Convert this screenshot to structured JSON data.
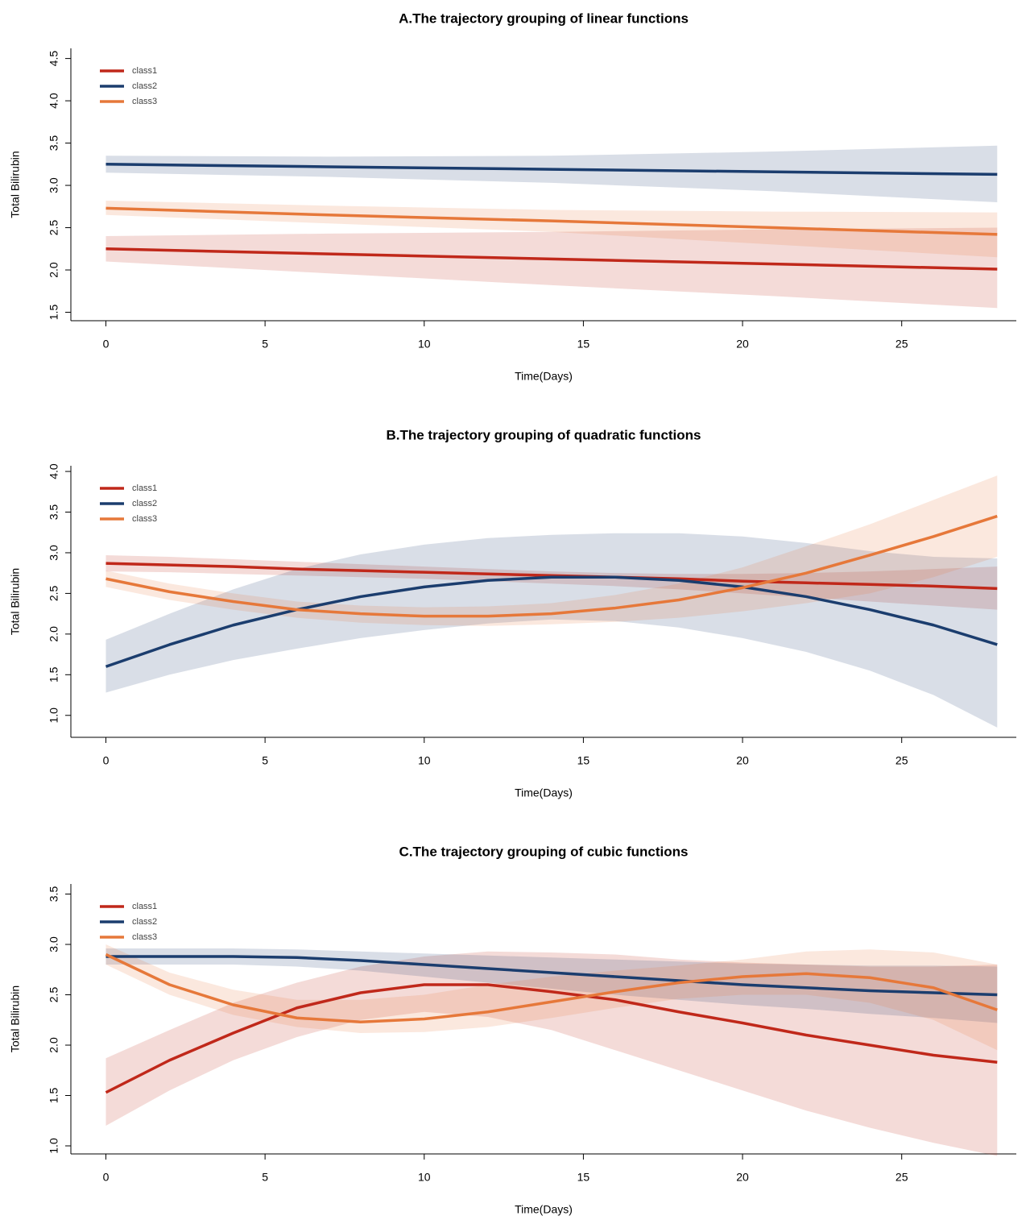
{
  "chart_data": [
    {
      "type": "line",
      "title": "A.The trajectory grouping of linear functions",
      "xlabel": "Time(Days)",
      "ylabel": "Total Bilirubin",
      "x": [
        0,
        7,
        14,
        21,
        28
      ],
      "xlim": [
        -1.1,
        28.6
      ],
      "xticks": [
        0,
        5,
        10,
        15,
        20,
        25
      ],
      "ylim": [
        1.4,
        4.62
      ],
      "yticks": [
        1.5,
        {
          "value": 2,
          "label": "2.0"
        },
        2.5,
        {
          "value": 3,
          "label": "3.0"
        },
        3.5,
        {
          "value": 4,
          "label": "4.0"
        },
        4.5
      ],
      "legend": "top-left",
      "series": [
        {
          "name": "class1",
          "color": "#c0281a",
          "values": [
            2.25,
            2.19,
            2.13,
            2.07,
            2.01
          ],
          "lower": [
            2.1,
            1.96,
            1.82,
            1.69,
            1.55
          ],
          "upper": [
            2.4,
            2.43,
            2.45,
            2.48,
            2.5
          ]
        },
        {
          "name": "class2",
          "color": "#1b3d6e",
          "values": [
            3.25,
            3.22,
            3.19,
            3.16,
            3.13
          ],
          "lower": [
            3.15,
            3.1,
            3.03,
            2.93,
            2.8
          ],
          "upper": [
            3.35,
            3.34,
            3.35,
            3.4,
            3.47
          ]
        },
        {
          "name": "class3",
          "color": "#e6783a",
          "values": [
            2.73,
            2.65,
            2.58,
            2.5,
            2.42
          ],
          "lower": [
            2.65,
            2.55,
            2.45,
            2.3,
            2.15
          ],
          "upper": [
            2.82,
            2.76,
            2.71,
            2.69,
            2.68
          ]
        }
      ]
    },
    {
      "type": "line",
      "title": "B.The trajectory grouping of quadratic functions",
      "xlabel": "Time(Days)",
      "ylabel": "Total Bilirubin",
      "x": [
        0,
        2,
        4,
        6,
        8,
        10,
        12,
        14,
        16,
        18,
        20,
        22,
        24,
        26,
        28
      ],
      "xlim": [
        -1.1,
        28.6
      ],
      "xticks": [
        0,
        5,
        10,
        15,
        20,
        25
      ],
      "ylim": [
        0.73,
        4.07
      ],
      "yticks": [
        {
          "value": 1,
          "label": "1.0"
        },
        1.5,
        {
          "value": 2,
          "label": "2.0"
        },
        2.5,
        {
          "value": 3,
          "label": "3.0"
        },
        3.5,
        {
          "value": 4,
          "label": "4.0"
        }
      ],
      "legend": "top-left",
      "series": [
        {
          "name": "class1",
          "color": "#c0281a",
          "values": [
            2.87,
            2.85,
            2.83,
            2.8,
            2.78,
            2.76,
            2.74,
            2.72,
            2.7,
            2.68,
            2.65,
            2.63,
            2.61,
            2.59,
            2.56
          ],
          "lower": [
            2.77,
            2.76,
            2.74,
            2.72,
            2.7,
            2.68,
            2.65,
            2.62,
            2.59,
            2.55,
            2.5,
            2.45,
            2.4,
            2.35,
            2.3
          ],
          "upper": [
            2.97,
            2.95,
            2.92,
            2.89,
            2.86,
            2.83,
            2.8,
            2.77,
            2.75,
            2.74,
            2.74,
            2.75,
            2.77,
            2.8,
            2.83
          ]
        },
        {
          "name": "class2",
          "color": "#1b3d6e",
          "values": [
            1.6,
            1.87,
            2.11,
            2.3,
            2.46,
            2.58,
            2.66,
            2.7,
            2.7,
            2.66,
            2.58,
            2.46,
            2.3,
            2.11,
            1.87
          ],
          "lower": [
            1.28,
            1.5,
            1.68,
            1.82,
            1.95,
            2.05,
            2.13,
            2.18,
            2.16,
            2.08,
            1.95,
            1.78,
            1.55,
            1.25,
            0.85
          ],
          "upper": [
            1.93,
            2.25,
            2.55,
            2.8,
            2.98,
            3.1,
            3.18,
            3.22,
            3.24,
            3.24,
            3.2,
            3.12,
            3.02,
            2.95,
            2.93
          ]
        },
        {
          "name": "class3",
          "color": "#e6783a",
          "values": [
            2.68,
            2.52,
            2.4,
            2.3,
            2.25,
            2.22,
            2.22,
            2.25,
            2.32,
            2.42,
            2.57,
            2.75,
            2.97,
            3.2,
            3.45
          ],
          "lower": [
            2.58,
            2.42,
            2.3,
            2.2,
            2.14,
            2.11,
            2.1,
            2.12,
            2.15,
            2.2,
            2.28,
            2.38,
            2.5,
            2.7,
            2.95
          ],
          "upper": [
            2.78,
            2.62,
            2.5,
            2.4,
            2.35,
            2.33,
            2.34,
            2.38,
            2.48,
            2.62,
            2.82,
            3.08,
            3.35,
            3.65,
            3.95
          ]
        }
      ]
    },
    {
      "type": "line",
      "title": "C.The trajectory grouping of cubic functions",
      "xlabel": "Time(Days)",
      "ylabel": "Total Bilirubin",
      "x": [
        0,
        2,
        4,
        6,
        8,
        10,
        12,
        14,
        16,
        18,
        20,
        22,
        24,
        26,
        28
      ],
      "xlim": [
        -1.1,
        28.6
      ],
      "xticks": [
        0,
        5,
        10,
        15,
        20,
        25
      ],
      "ylim": [
        0.92,
        3.6
      ],
      "yticks": [
        {
          "value": 1,
          "label": "1.0"
        },
        1.5,
        {
          "value": 2,
          "label": "2.0"
        },
        2.5,
        {
          "value": 3,
          "label": "3.0"
        },
        3.5
      ],
      "legend": "top-left",
      "series": [
        {
          "name": "class1",
          "color": "#c0281a",
          "values": [
            1.53,
            1.85,
            2.12,
            2.37,
            2.52,
            2.6,
            2.6,
            2.53,
            2.45,
            2.33,
            2.22,
            2.1,
            2.0,
            1.9,
            1.83
          ],
          "lower": [
            1.2,
            1.55,
            1.85,
            2.08,
            2.25,
            2.33,
            2.28,
            2.15,
            1.95,
            1.75,
            1.55,
            1.35,
            1.18,
            1.03,
            0.9
          ],
          "upper": [
            1.87,
            2.15,
            2.42,
            2.62,
            2.78,
            2.88,
            2.93,
            2.92,
            2.9,
            2.85,
            2.82,
            2.8,
            2.78,
            2.78,
            2.8
          ]
        },
        {
          "name": "class2",
          "color": "#1b3d6e",
          "values": [
            2.88,
            2.88,
            2.88,
            2.87,
            2.84,
            2.8,
            2.76,
            2.72,
            2.68,
            2.64,
            2.6,
            2.57,
            2.54,
            2.52,
            2.5
          ],
          "lower": [
            2.8,
            2.8,
            2.8,
            2.78,
            2.74,
            2.68,
            2.62,
            2.56,
            2.5,
            2.45,
            2.4,
            2.36,
            2.31,
            2.27,
            2.22
          ],
          "upper": [
            2.96,
            2.96,
            2.96,
            2.95,
            2.93,
            2.91,
            2.89,
            2.87,
            2.85,
            2.83,
            2.81,
            2.8,
            2.79,
            2.79,
            2.78
          ]
        },
        {
          "name": "class3",
          "color": "#e6783a",
          "values": [
            2.9,
            2.6,
            2.4,
            2.27,
            2.23,
            2.26,
            2.33,
            2.43,
            2.53,
            2.62,
            2.68,
            2.71,
            2.67,
            2.57,
            2.35
          ],
          "lower": [
            2.8,
            2.5,
            2.3,
            2.18,
            2.12,
            2.13,
            2.18,
            2.27,
            2.37,
            2.46,
            2.5,
            2.5,
            2.42,
            2.25,
            1.95
          ],
          "upper": [
            3.0,
            2.72,
            2.55,
            2.45,
            2.45,
            2.5,
            2.6,
            2.68,
            2.74,
            2.79,
            2.85,
            2.93,
            2.95,
            2.92,
            2.8
          ]
        }
      ]
    }
  ]
}
